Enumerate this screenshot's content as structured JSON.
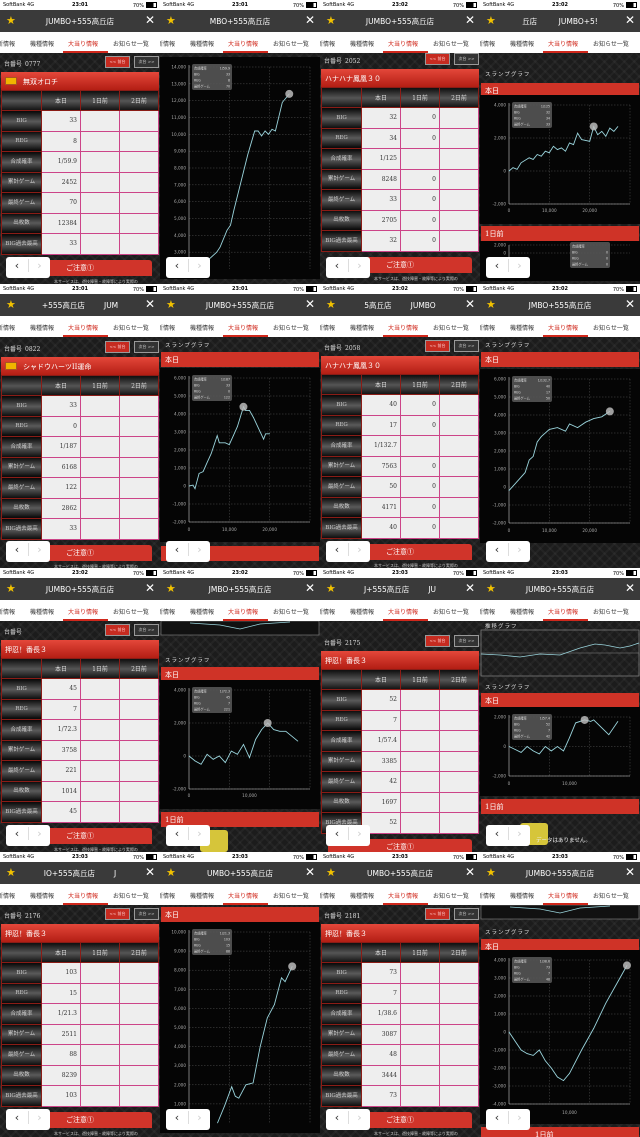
{
  "status": {
    "carrier": "SoftBank  4G",
    "battery": "70%"
  },
  "tabs": [
    "新情報",
    "機種情報",
    "大当り情報",
    "お知らせ一覧"
  ],
  "active_tab": 2,
  "table_labels": {
    "columns": [
      "本日",
      "1日前",
      "2日前"
    ],
    "rows": [
      "BIG",
      "REG",
      "合成確率",
      "累計ゲーム",
      "最終ゲーム",
      "出枚数",
      "BIG過去最高"
    ],
    "prev": "<< 前台",
    "next": "次台 >>",
    "number_prefix": "台番号",
    "caution": "ご注意①",
    "caution_text": "本サービスは、遊技障害・故障等により実際の"
  },
  "graph_labels": {
    "slump": "スランプグラフ",
    "trend": "推移グラフ",
    "today": "本日",
    "prev_day": "1日前",
    "no_data": "データはありません。",
    "tooltip_labels": [
      "合成確率",
      "BIG",
      "REG",
      "最終ゲーム"
    ]
  },
  "colors": {
    "accent": "#d0281c",
    "title_bar": "#3a3a3a",
    "star": "#f2c200",
    "series": "#9ad4dc"
  },
  "panels": [
    {
      "time": "23:01",
      "title": "JUMBO+555高丘店",
      "type": "table",
      "number": "0777",
      "machine": "無双オロチ",
      "has_icon": true,
      "today": [
        "33",
        "8",
        "1/59.9",
        "2452",
        "70",
        "12384",
        "33"
      ],
      "day1": [
        "",
        "",
        "",
        "",
        "",
        "",
        ""
      ]
    },
    {
      "time": "23:01",
      "title": "MBO+555高丘店",
      "type": "graph",
      "chart": {
        "ytick_labels": [
          "3,000",
          "4,000",
          "5,000",
          "6,000",
          "7,000",
          "8,000",
          "9,000",
          "10,000",
          "11,000",
          "12,000",
          "13,000",
          "14,000"
        ],
        "ylim": [
          2000,
          14000
        ],
        "xlim": [
          0,
          17500
        ],
        "xtick_labels": [],
        "points": [
          [
            0,
            1500
          ],
          [
            4000,
            3000
          ],
          [
            4500,
            3300
          ],
          [
            5500,
            4300
          ],
          [
            6000,
            4600
          ],
          [
            6500,
            5500
          ],
          [
            8500,
            8800
          ],
          [
            9500,
            10200
          ],
          [
            10000,
            10200
          ],
          [
            10500,
            9900
          ],
          [
            11000,
            10200
          ],
          [
            11500,
            10000
          ],
          [
            12000,
            10300
          ],
          [
            12500,
            10200
          ],
          [
            13500,
            11900
          ],
          [
            14500,
            12400
          ]
        ],
        "marker": [
          14500,
          12400
        ],
        "tooltip": [
          "1/59.9",
          "33",
          "8",
          "70"
        ]
      }
    },
    {
      "time": "23:02",
      "title": "JUMBO+555高丘店",
      "type": "table",
      "number": "2052",
      "machine": "ハナハナ鳳凰３０",
      "has_icon": false,
      "today": [
        "32",
        "34",
        "1/125",
        "8248",
        "33",
        "2705",
        "32"
      ],
      "day1": [
        "0",
        "0",
        "",
        "0",
        "0",
        "0",
        "0"
      ]
    },
    {
      "time": "23:02",
      "title": "丘店         JUMBO+5!",
      "type": "graph",
      "chart": {
        "ytick_labels": [
          "-2,000",
          "0",
          "2,000",
          "4,000"
        ],
        "ylim": [
          -2000,
          4000
        ],
        "xlim": [
          0,
          30000
        ],
        "xtick_labels": [
          "0",
          "10,000",
          "20,000"
        ],
        "points": [
          [
            0,
            0
          ],
          [
            1000,
            200
          ],
          [
            2000,
            100
          ],
          [
            3000,
            500
          ],
          [
            5000,
            800
          ],
          [
            6000,
            700
          ],
          [
            7000,
            1000
          ],
          [
            8000,
            900
          ],
          [
            9000,
            1200
          ],
          [
            10000,
            1100
          ],
          [
            11000,
            1500
          ],
          [
            12000,
            1300
          ],
          [
            13000,
            1400
          ],
          [
            14000,
            1200
          ],
          [
            15000,
            1700
          ],
          [
            16000,
            1600
          ],
          [
            17000,
            2300
          ],
          [
            18000,
            1900
          ],
          [
            20000,
            1800
          ],
          [
            21000,
            2700
          ],
          [
            22000,
            2200
          ],
          [
            23000,
            2400
          ],
          [
            24000,
            2100
          ],
          [
            25000,
            2600
          ],
          [
            26000,
            2400
          ],
          [
            27000,
            2700
          ]
        ],
        "marker": [
          21000,
          2700
        ],
        "tooltip": [
          "1/125",
          "32",
          "34",
          "33"
        ]
      },
      "prev_chart": {
        "ytick_labels": [
          "2,000",
          "0"
        ],
        "tooltip": [
          "",
          "0",
          "0",
          "0"
        ]
      }
    },
    {
      "time": "23:01",
      "title": "+555高丘店        JUM",
      "type": "table",
      "number": "0822",
      "machine": "シャドウハーツII運命",
      "has_icon": true,
      "today": [
        "33",
        "0",
        "1/187",
        "6168",
        "122",
        "2862",
        "33"
      ],
      "day1": [
        "",
        "",
        "",
        "",
        "",
        "",
        ""
      ]
    },
    {
      "time": "23:01",
      "title": "JUMBO+555高丘店",
      "type": "graph",
      "chart": {
        "ytick_labels": [
          "-2,000",
          "-1,000",
          "0",
          "1,000",
          "2,000",
          "3,000",
          "4,000",
          "5,000",
          "6,000"
        ],
        "ylim": [
          -2000,
          6000
        ],
        "xlim": [
          0,
          30000
        ],
        "xtick_labels": [
          "0",
          "10,000",
          "20,000"
        ],
        "points": [
          [
            0,
            0
          ],
          [
            1000,
            50
          ],
          [
            1500,
            -150
          ],
          [
            2500,
            700
          ],
          [
            3500,
            800
          ],
          [
            4500,
            1300
          ],
          [
            5500,
            1800
          ],
          [
            7000,
            2800
          ],
          [
            7500,
            2400
          ],
          [
            9000,
            2400
          ],
          [
            10000,
            2300
          ],
          [
            11000,
            2800
          ],
          [
            12000,
            3300
          ],
          [
            13500,
            4400
          ],
          [
            14000,
            4200
          ],
          [
            15000,
            4200
          ],
          [
            16000,
            3800
          ],
          [
            18500,
            2600
          ],
          [
            19000,
            2900
          ],
          [
            20000,
            2900
          ]
        ],
        "marker": [
          13500,
          4400
        ],
        "tooltip": [
          "1/187",
          "33",
          "0",
          "122"
        ]
      }
    },
    {
      "time": "23:02",
      "title": "5高丘店        JUMBO",
      "type": "table",
      "number": "2058",
      "machine": "ハナハナ鳳凰３０",
      "has_icon": false,
      "today": [
        "40",
        "17",
        "1/132.7",
        "7563",
        "50",
        "4171",
        "40"
      ],
      "day1": [
        "0",
        "0",
        "",
        "0",
        "0",
        "0",
        "0"
      ]
    },
    {
      "time": "23:02",
      "title": "JMBO+555高丘店",
      "type": "graph",
      "chart": {
        "ytick_labels": [
          "-2,000",
          "-1,000",
          "0",
          "1,000",
          "2,000",
          "3,000",
          "4,000",
          "5,000",
          "6,000"
        ],
        "ylim": [
          -2000,
          6000
        ],
        "xlim": [
          0,
          30000
        ],
        "xtick_labels": [
          "0",
          "10,000",
          "20,000"
        ],
        "points": [
          [
            0,
            -200
          ],
          [
            2000,
            300
          ],
          [
            4000,
            800
          ],
          [
            5000,
            1500
          ],
          [
            6000,
            1700
          ],
          [
            7000,
            2500
          ],
          [
            8000,
            2800
          ],
          [
            10000,
            3200
          ],
          [
            12000,
            3300
          ],
          [
            14000,
            3100
          ],
          [
            15000,
            3500
          ],
          [
            17000,
            3300
          ],
          [
            19000,
            3600
          ],
          [
            21000,
            3800
          ],
          [
            23000,
            3900
          ],
          [
            25000,
            4200
          ]
        ],
        "marker": [
          25000,
          4200
        ],
        "tooltip": [
          "1/132.7",
          "40",
          "17",
          "50"
        ]
      }
    },
    {
      "time": "23:02",
      "title": "JUMBO+555高丘店",
      "type": "table",
      "number": "",
      "machine": "押忍！番長３",
      "has_icon": false,
      "today": [
        "45",
        "7",
        "1/72.3",
        "3758",
        "221",
        "1014",
        "45"
      ],
      "day1": [
        "",
        "",
        "",
        "",
        "",
        "",
        ""
      ]
    },
    {
      "time": "23:02",
      "title": "JMBO+555高丘店",
      "type": "graph",
      "chart": {
        "ytick_labels": [
          "-2,000",
          "0",
          "2,000",
          "4,000"
        ],
        "ylim": [
          -2000,
          4000
        ],
        "xlim": [
          0,
          20000
        ],
        "xtick_labels": [
          "0",
          "10,000"
        ],
        "points": [
          [
            0,
            0
          ],
          [
            1000,
            -300
          ],
          [
            2000,
            -500
          ],
          [
            3000,
            100
          ],
          [
            4000,
            -200
          ],
          [
            5000,
            0
          ],
          [
            6000,
            -400
          ],
          [
            7000,
            300
          ],
          [
            8000,
            100
          ],
          [
            9000,
            700
          ],
          [
            10000,
            -100
          ],
          [
            11000,
            1000
          ],
          [
            12000,
            1600
          ],
          [
            13000,
            2000
          ],
          [
            14000,
            1600
          ],
          [
            15000,
            1500
          ],
          [
            16000,
            1500
          ],
          [
            17000,
            1200
          ],
          [
            18000,
            900
          ]
        ],
        "marker": [
          13000,
          2000
        ],
        "tooltip": [
          "1/72.3",
          "45",
          "7",
          "221"
        ]
      }
    },
    {
      "time": "23:03",
      "title": "J+555高丘店        JU",
      "type": "table",
      "number": "2175",
      "machine": "押忍！番長３",
      "has_icon": false,
      "today": [
        "52",
        "7",
        "1/57.4",
        "3385",
        "42",
        "1697",
        "52"
      ],
      "day1": [
        "",
        "",
        "",
        "",
        "",
        "",
        ""
      ]
    },
    {
      "time": "23:03",
      "title": "JUMBO+555高丘店",
      "type": "graph",
      "chart": {
        "ytick_labels": [
          "-2,000",
          "0",
          "2,000"
        ],
        "ylim": [
          -2000,
          2000
        ],
        "xlim": [
          0,
          20000
        ],
        "xtick_labels": [
          "0",
          "10,000"
        ],
        "points": [
          [
            0,
            0
          ],
          [
            1000,
            -200
          ],
          [
            2000,
            -400
          ],
          [
            3000,
            0
          ],
          [
            4000,
            -300
          ],
          [
            5000,
            -500
          ],
          [
            6000,
            0
          ],
          [
            7000,
            -300
          ],
          [
            8000,
            0
          ],
          [
            9000,
            -300
          ],
          [
            10000,
            600
          ],
          [
            11000,
            1600
          ],
          [
            12500,
            1800
          ],
          [
            13500,
            1700
          ],
          [
            14000,
            1800
          ],
          [
            16500,
            800
          ],
          [
            18000,
            1700
          ]
        ],
        "marker": [
          12500,
          1800
        ],
        "tooltip": [
          "1/57.4",
          "52",
          "7",
          "42"
        ]
      }
    },
    {
      "time": "23:03",
      "title": "IO+555高丘店        J",
      "type": "table",
      "number": "2176",
      "machine": "押忍！番長３",
      "has_icon": false,
      "today": [
        "103",
        "15",
        "1/21.3",
        "2511",
        "88",
        "8239",
        "103"
      ],
      "day1": [
        "",
        "",
        "",
        "",
        "",
        "",
        ""
      ]
    },
    {
      "time": "23:03",
      "title": "UMBO+555高丘店",
      "type": "graph",
      "chart": {
        "ytick_labels": [
          "1,000",
          "2,000",
          "3,000",
          "4,000",
          "5,000",
          "6,000",
          "7,000",
          "8,000",
          "9,000",
          "10,000"
        ],
        "ylim": [
          0,
          10000
        ],
        "xlim": [
          0,
          17000
        ],
        "xtick_labels": [],
        "points": [
          [
            4000,
            0
          ],
          [
            5000,
            900
          ],
          [
            6000,
            1900
          ],
          [
            6500,
            1400
          ],
          [
            7000,
            1300
          ],
          [
            8000,
            2000
          ],
          [
            9000,
            2100
          ],
          [
            10000,
            4000
          ],
          [
            11000,
            5500
          ],
          [
            12000,
            6200
          ],
          [
            13000,
            7600
          ],
          [
            13500,
            7400
          ],
          [
            14500,
            8200
          ]
        ],
        "marker": [
          14500,
          8200
        ],
        "tooltip": [
          "1/21.3",
          "103",
          "15",
          "88"
        ]
      }
    },
    {
      "time": "23:03",
      "title": "UMBO+555高丘店",
      "type": "table",
      "number": "2181",
      "machine": "押忍！番長３",
      "has_icon": false,
      "today": [
        "73",
        "7",
        "1/38.6",
        "3087",
        "48",
        "3444",
        "73"
      ],
      "day1": [
        "",
        "",
        "",
        "",
        "",
        "",
        ""
      ]
    },
    {
      "time": "23:03",
      "title": "JUMBO+555高丘店",
      "type": "graph",
      "chart": {
        "ytick_labels": [
          "-4,000",
          "-3,000",
          "-2,000",
          "-1,000",
          "0",
          "1,000",
          "2,000",
          "3,000",
          "4,000"
        ],
        "ylim": [
          -4000,
          4000
        ],
        "xlim": [
          0,
          20000
        ],
        "xtick_labels": [
          "10,000"
        ],
        "points": [
          [
            0,
            0
          ],
          [
            1000,
            -500
          ],
          [
            2000,
            -1000
          ],
          [
            3000,
            -1200
          ],
          [
            4000,
            -1300
          ],
          [
            5000,
            -1000
          ],
          [
            6000,
            -1600
          ],
          [
            7000,
            -2000
          ],
          [
            8000,
            -2500
          ],
          [
            9000,
            -2700
          ],
          [
            10000,
            -2300
          ],
          [
            12000,
            -1000
          ],
          [
            14000,
            200
          ],
          [
            16000,
            1600
          ],
          [
            18000,
            2800
          ],
          [
            19500,
            3700
          ]
        ],
        "marker": [
          19500,
          3700
        ],
        "tooltip": [
          "1/38.6",
          "73",
          "7",
          "48"
        ]
      }
    }
  ]
}
